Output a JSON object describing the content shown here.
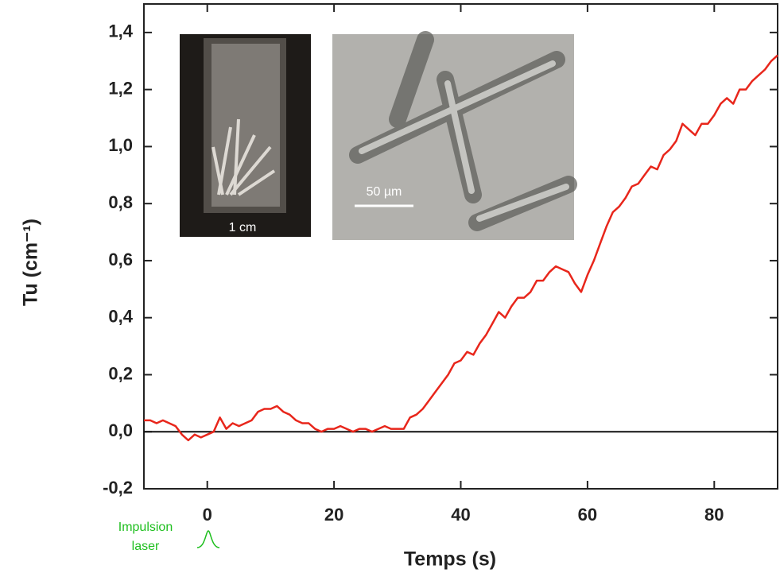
{
  "chart_data": {
    "type": "line",
    "xlabel": "Temps (s)",
    "ylabel": "Tu (cm⁻¹)",
    "annotation": "Impulsion laser",
    "inset_labels": [
      "1 cm",
      "50 µm"
    ],
    "x": [
      -10,
      -9,
      -8,
      -7,
      -6,
      -5,
      -4,
      -3,
      -2,
      -1,
      0,
      1,
      2,
      3,
      4,
      5,
      6,
      7,
      8,
      9,
      10,
      11,
      12,
      13,
      14,
      15,
      16,
      17,
      18,
      19,
      20,
      21,
      22,
      23,
      24,
      25,
      26,
      27,
      28,
      29,
      30,
      31,
      32,
      33,
      34,
      35,
      36,
      37,
      38,
      39,
      40,
      41,
      42,
      43,
      44,
      45,
      46,
      47,
      48,
      49,
      50,
      51,
      52,
      53,
      54,
      55,
      56,
      57,
      58,
      59,
      60,
      61,
      62,
      63,
      64,
      65,
      66,
      67,
      68,
      69,
      70,
      71,
      72,
      73,
      74,
      75,
      76,
      77,
      78,
      79,
      80,
      81,
      82,
      83,
      84,
      85,
      86,
      87,
      88,
      89,
      90
    ],
    "series": [
      {
        "name": "Tu",
        "color": "#e8261b",
        "values": [
          0.04,
          0.04,
          0.03,
          0.04,
          0.03,
          0.02,
          -0.01,
          -0.03,
          -0.01,
          -0.02,
          -0.01,
          0.0,
          0.05,
          0.01,
          0.03,
          0.02,
          0.03,
          0.04,
          0.07,
          0.08,
          0.08,
          0.09,
          0.07,
          0.06,
          0.04,
          0.03,
          0.03,
          0.01,
          0.0,
          0.01,
          0.01,
          0.02,
          0.01,
          0.0,
          0.01,
          0.01,
          0.0,
          0.01,
          0.02,
          0.01,
          0.01,
          0.01,
          0.05,
          0.06,
          0.08,
          0.11,
          0.14,
          0.17,
          0.2,
          0.24,
          0.25,
          0.28,
          0.27,
          0.31,
          0.34,
          0.38,
          0.42,
          0.4,
          0.44,
          0.47,
          0.47,
          0.49,
          0.53,
          0.53,
          0.56,
          0.58,
          0.57,
          0.56,
          0.52,
          0.49,
          0.55,
          0.6,
          0.66,
          0.72,
          0.77,
          0.79,
          0.82,
          0.86,
          0.87,
          0.9,
          0.93,
          0.92,
          0.97,
          0.99,
          1.02,
          1.08,
          1.06,
          1.04,
          1.08,
          1.08,
          1.11,
          1.15,
          1.17,
          1.15,
          1.2,
          1.2,
          1.23,
          1.25,
          1.27,
          1.3,
          1.32
        ]
      }
    ],
    "reference_line": 0,
    "xlim": [
      -10,
      90
    ],
    "xticks": [
      0,
      20,
      40,
      60,
      80
    ],
    "ylim": [
      -0.2,
      1.5
    ],
    "yticks": [
      {
        "value": -0.2,
        "label": "-0,2"
      },
      {
        "value": 0,
        "label": "0,0"
      },
      {
        "value": 0.2,
        "label": "0,2"
      },
      {
        "value": 0.4,
        "label": "0,4"
      },
      {
        "value": 0.6,
        "label": "0,6"
      },
      {
        "value": 0.8,
        "label": "0,8"
      },
      {
        "value": 1.0,
        "label": "1,0"
      },
      {
        "value": 1.2,
        "label": "1,2"
      },
      {
        "value": 1.4,
        "label": "1,4"
      }
    ]
  }
}
